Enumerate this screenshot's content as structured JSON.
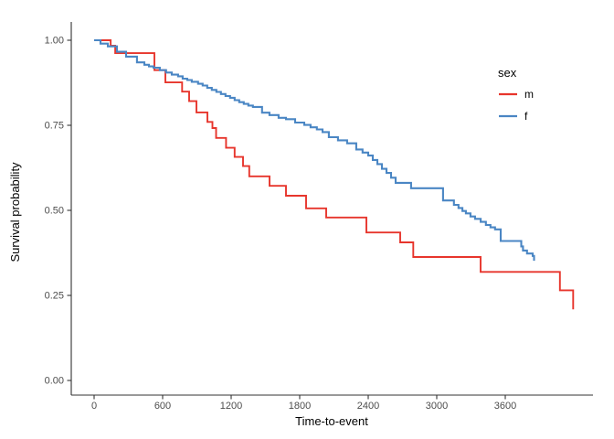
{
  "chart_data": {
    "type": "line",
    "subtype": "kaplan-meier-step-survival",
    "title": "",
    "xlabel": "Time-to-event",
    "ylabel": "Survival probability",
    "xlim": [
      0,
      4360
    ],
    "ylim": [
      0,
      1.0
    ],
    "x_ticks": [
      0,
      600,
      1200,
      1800,
      2400,
      3000,
      3600
    ],
    "x_tick_labels": [
      "0",
      "600",
      "1200",
      "1800",
      "2400",
      "3000",
      "3600"
    ],
    "y_ticks": [
      0,
      0.25,
      0.5,
      0.75,
      1.0
    ],
    "y_tick_labels": [
      "0.00",
      "0.25",
      "0.50",
      "0.75",
      "1.00"
    ],
    "grid": false,
    "legend": {
      "title": "sex",
      "position": "right",
      "items": [
        {
          "label": "m",
          "color": "#e7352c"
        },
        {
          "label": "f",
          "color": "#4a86c4"
        }
      ]
    },
    "axis_color": "#333333",
    "tick_text_color": "#4d4d4d",
    "background": "#ffffff",
    "series": [
      {
        "name": "m",
        "color": "#e7352c",
        "step": true,
        "points": [
          [
            0,
            1.0
          ],
          [
            145,
            0.984
          ],
          [
            185,
            0.962
          ],
          [
            528,
            0.912
          ],
          [
            624,
            0.876
          ],
          [
            770,
            0.849
          ],
          [
            832,
            0.821
          ],
          [
            896,
            0.788
          ],
          [
            992,
            0.76
          ],
          [
            1036,
            0.742
          ],
          [
            1068,
            0.713
          ],
          [
            1155,
            0.684
          ],
          [
            1230,
            0.657
          ],
          [
            1304,
            0.63
          ],
          [
            1358,
            0.6
          ],
          [
            1536,
            0.572
          ],
          [
            1680,
            0.543
          ],
          [
            1856,
            0.506
          ],
          [
            2032,
            0.479
          ],
          [
            2384,
            0.435
          ],
          [
            2680,
            0.406
          ],
          [
            2794,
            0.363
          ],
          [
            3384,
            0.319
          ],
          [
            4078,
            0.265
          ],
          [
            4194,
            0.209
          ]
        ]
      },
      {
        "name": "f",
        "color": "#4a86c4",
        "step": true,
        "points": [
          [
            0,
            1.0
          ],
          [
            56,
            0.99
          ],
          [
            120,
            0.982
          ],
          [
            200,
            0.966
          ],
          [
            280,
            0.952
          ],
          [
            375,
            0.935
          ],
          [
            440,
            0.928
          ],
          [
            480,
            0.923
          ],
          [
            520,
            0.919
          ],
          [
            575,
            0.912
          ],
          [
            630,
            0.905
          ],
          [
            680,
            0.899
          ],
          [
            735,
            0.894
          ],
          [
            775,
            0.887
          ],
          [
            815,
            0.883
          ],
          [
            855,
            0.878
          ],
          [
            910,
            0.872
          ],
          [
            950,
            0.867
          ],
          [
            990,
            0.86
          ],
          [
            1030,
            0.854
          ],
          [
            1070,
            0.848
          ],
          [
            1110,
            0.842
          ],
          [
            1150,
            0.836
          ],
          [
            1190,
            0.831
          ],
          [
            1230,
            0.824
          ],
          [
            1270,
            0.818
          ],
          [
            1310,
            0.813
          ],
          [
            1350,
            0.808
          ],
          [
            1390,
            0.804
          ],
          [
            1470,
            0.787
          ],
          [
            1535,
            0.78
          ],
          [
            1615,
            0.772
          ],
          [
            1680,
            0.768
          ],
          [
            1760,
            0.758
          ],
          [
            1840,
            0.751
          ],
          [
            1895,
            0.744
          ],
          [
            1950,
            0.738
          ],
          [
            2000,
            0.73
          ],
          [
            2055,
            0.715
          ],
          [
            2135,
            0.706
          ],
          [
            2215,
            0.697
          ],
          [
            2295,
            0.679
          ],
          [
            2350,
            0.67
          ],
          [
            2400,
            0.661
          ],
          [
            2440,
            0.648
          ],
          [
            2480,
            0.636
          ],
          [
            2520,
            0.622
          ],
          [
            2560,
            0.61
          ],
          [
            2600,
            0.596
          ],
          [
            2640,
            0.581
          ],
          [
            2775,
            0.565
          ],
          [
            3055,
            0.529
          ],
          [
            3150,
            0.516
          ],
          [
            3190,
            0.507
          ],
          [
            3225,
            0.498
          ],
          [
            3255,
            0.491
          ],
          [
            3295,
            0.482
          ],
          [
            3335,
            0.475
          ],
          [
            3385,
            0.466
          ],
          [
            3430,
            0.457
          ],
          [
            3470,
            0.45
          ],
          [
            3510,
            0.444
          ],
          [
            3560,
            0.41
          ],
          [
            3740,
            0.394
          ],
          [
            3755,
            0.382
          ],
          [
            3790,
            0.373
          ],
          [
            3840,
            0.366
          ],
          [
            3852,
            0.352
          ]
        ]
      }
    ]
  }
}
